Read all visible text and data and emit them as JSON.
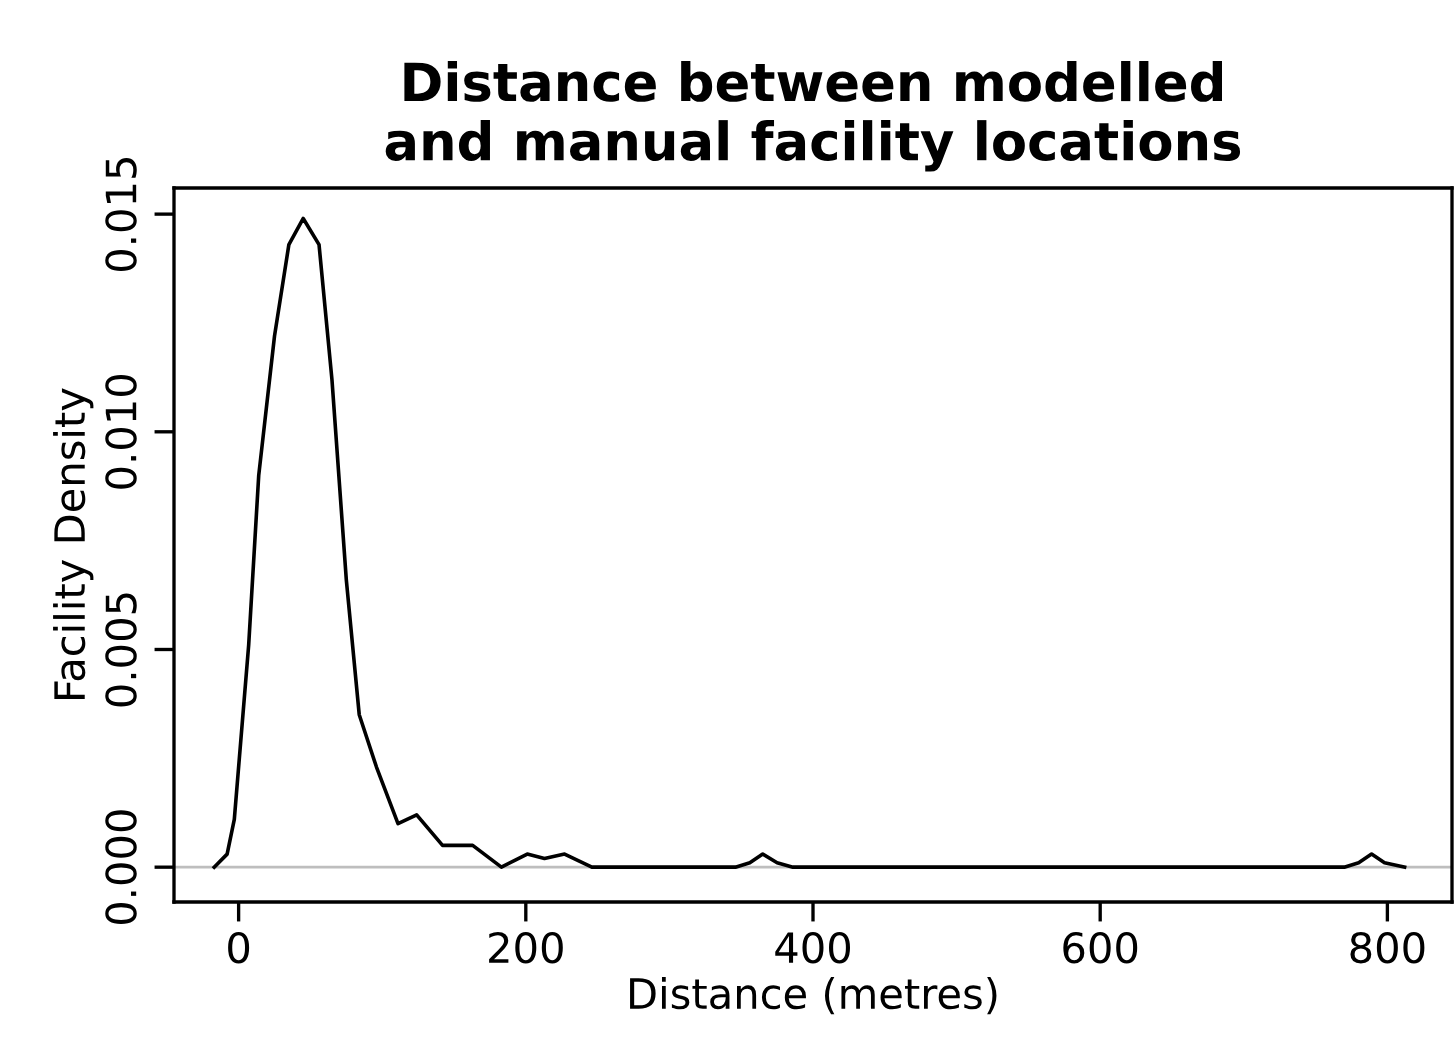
{
  "chart_data": {
    "type": "line",
    "title": "Distance between modelled\nand manual facility locations",
    "xlabel": "Distance (metres)",
    "ylabel": "Facility Density",
    "series": [
      {
        "color": "#000000",
        "x": [
          -17,
          -8,
          -3,
          7,
          14,
          25,
          35,
          45,
          56,
          65,
          75,
          84,
          96,
          111,
          124,
          142,
          163,
          183,
          201,
          213,
          227,
          246,
          300,
          346,
          356,
          365,
          375,
          386,
          500,
          650,
          770,
          780,
          789,
          798,
          812
        ],
        "values": [
          0,
          0.0003,
          0.0011,
          0.0051,
          0.009,
          0.0122,
          0.0143,
          0.0149,
          0.0143,
          0.0112,
          0.0066,
          0.0035,
          0.0023,
          0.001,
          0.0012,
          0.0005,
          0.0005,
          0,
          0.0003,
          0.0002,
          0.0003,
          0,
          0,
          0,
          0.0001,
          0.0003,
          0.0001,
          0,
          0,
          0,
          0,
          0.0001,
          0.0003,
          0.0001,
          0
        ]
      }
    ],
    "xlim": [
      -45,
      845
    ],
    "ylim": [
      -0.0008,
      0.0156
    ],
    "xticks": [
      0,
      200,
      400,
      600,
      800
    ],
    "yticks": [
      {
        "value": 0,
        "label": "0.000"
      },
      {
        "value": 0.005,
        "label": "0.005"
      },
      {
        "value": 0.01,
        "label": "0.010"
      },
      {
        "value": 0.015,
        "label": "0.015"
      }
    ],
    "ref_lines": [
      {
        "axis": "y",
        "value": 0,
        "color": "#bebebe"
      }
    ],
    "grid": false,
    "marker": "none",
    "line_style": "solid"
  }
}
